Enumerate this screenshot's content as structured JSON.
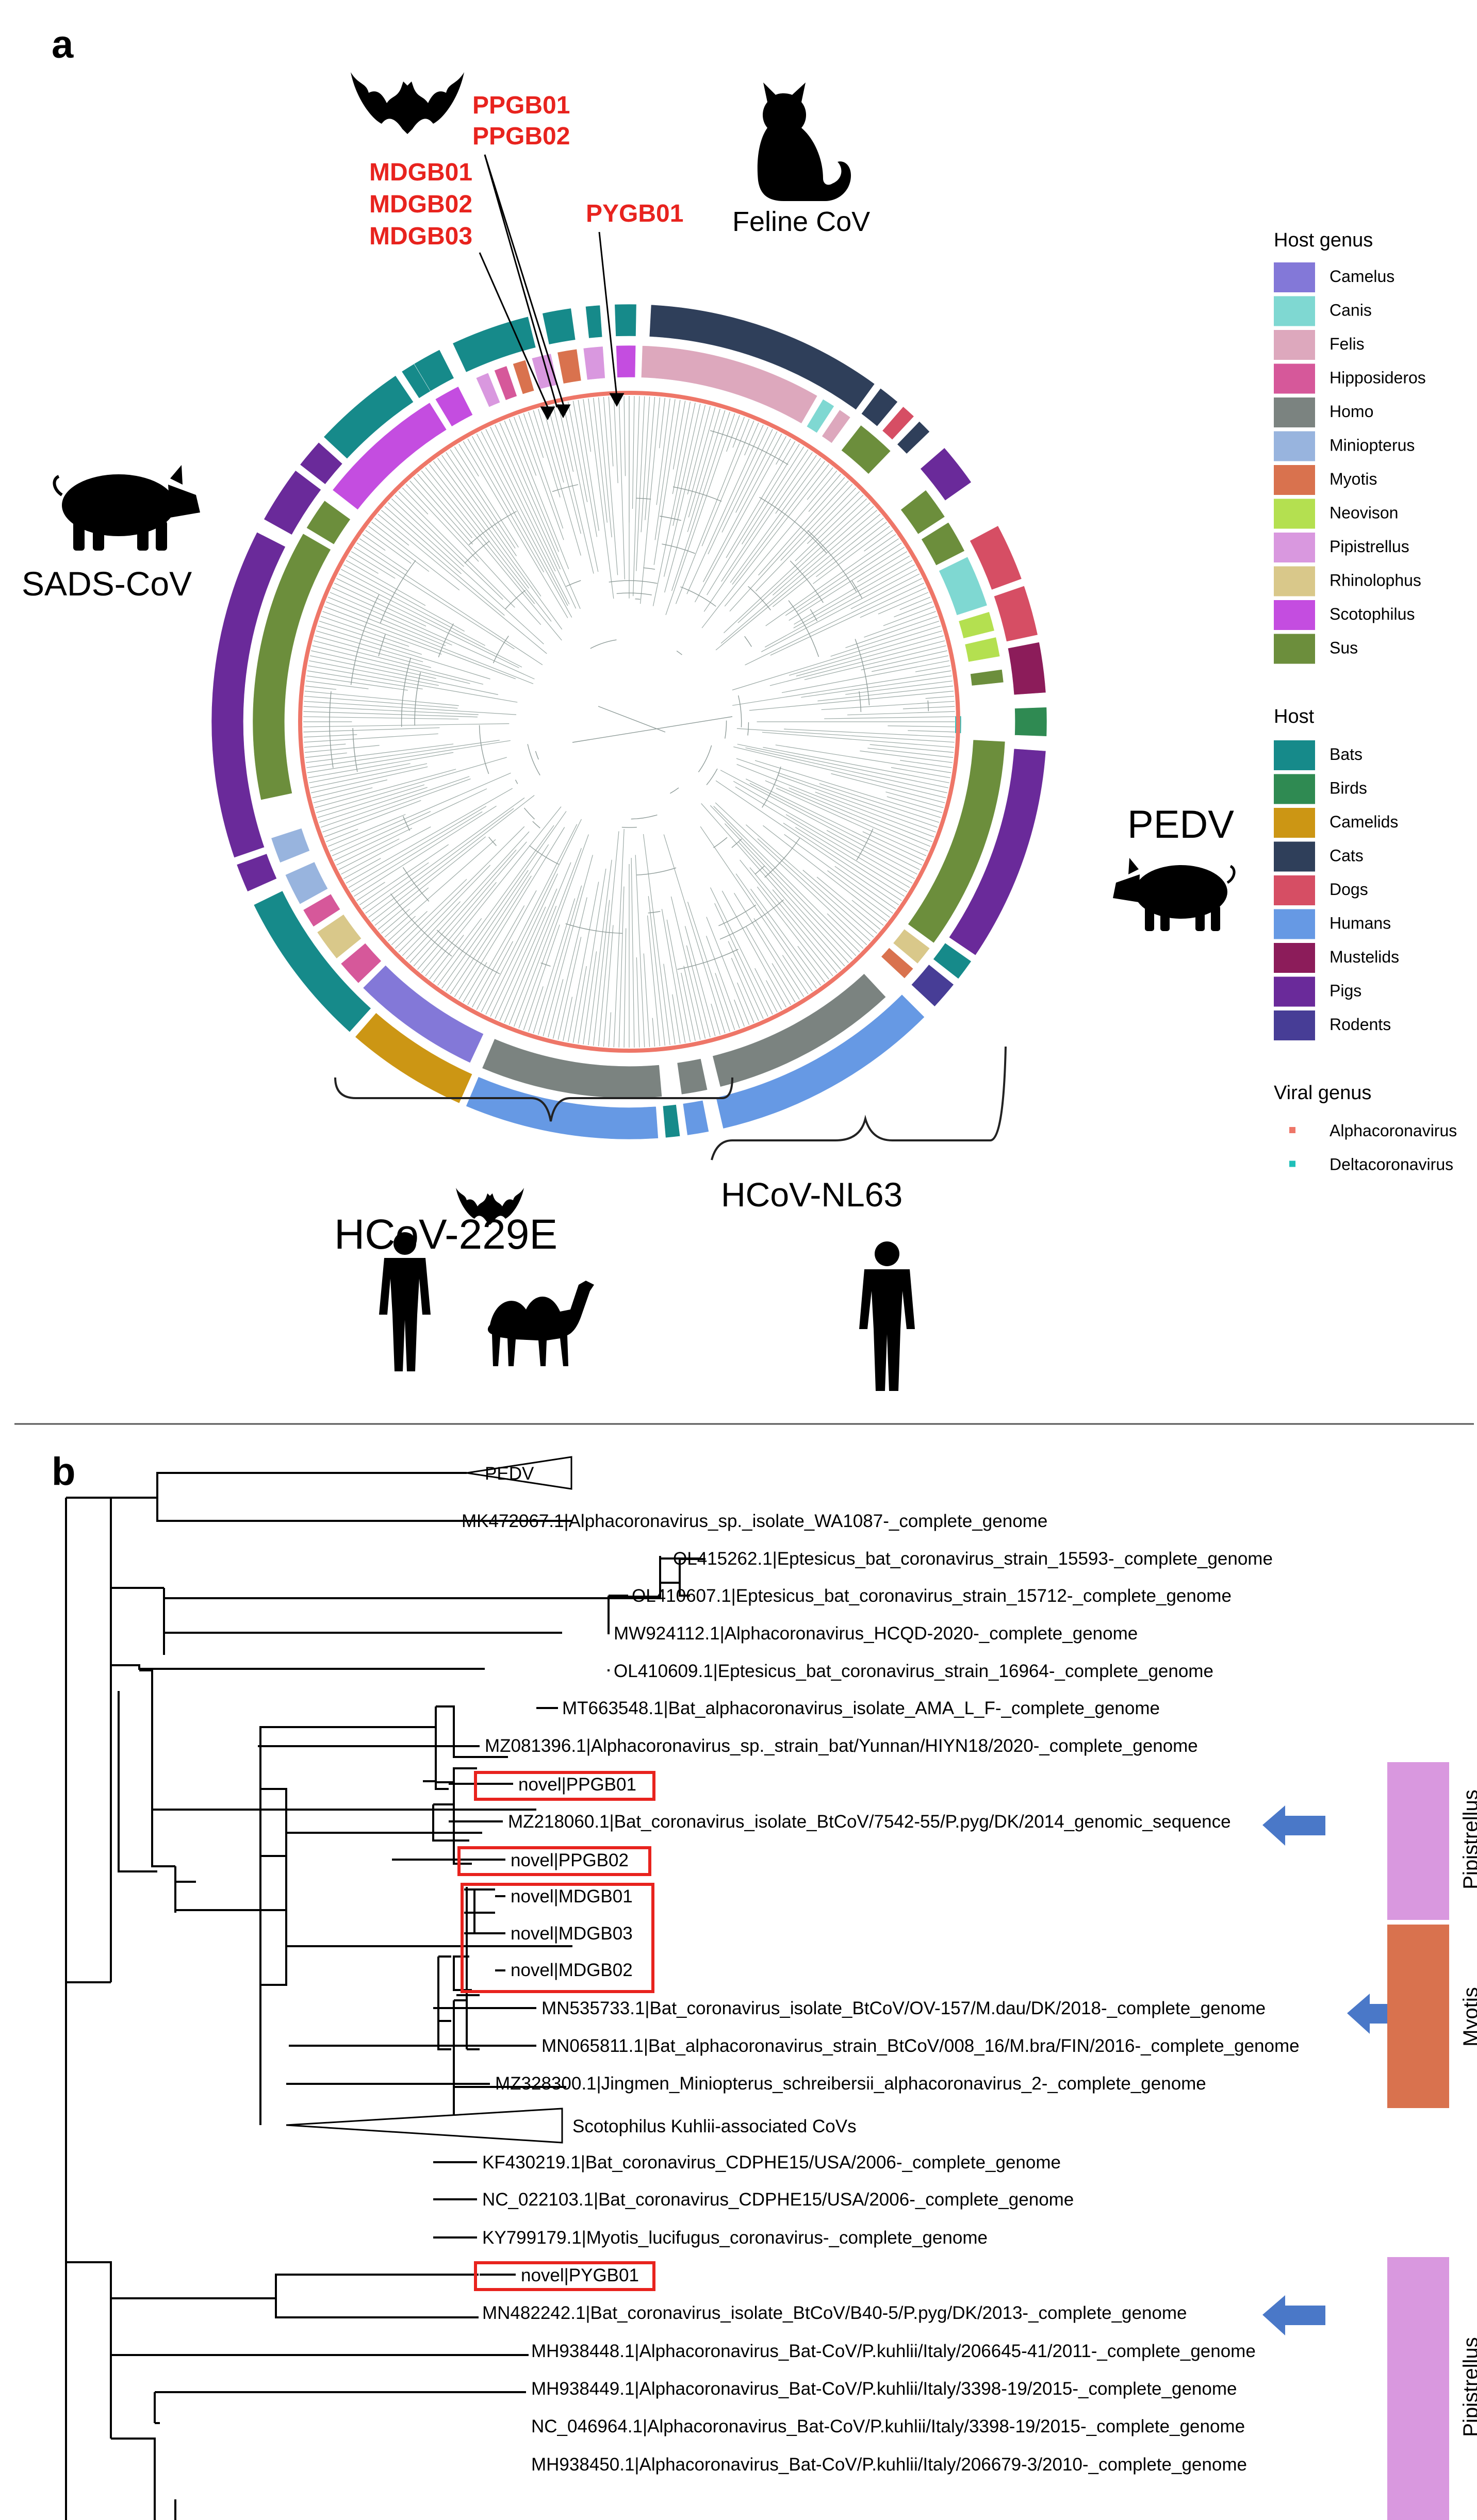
{
  "panel_a": {
    "letter": "a",
    "highlight_labels": [
      {
        "id": "ppgb",
        "lines": [
          "PPGB01",
          "PPGB02"
        ]
      },
      {
        "id": "mdgb",
        "lines": [
          "MDGB01",
          "MDGB02",
          "MDGB03"
        ]
      },
      {
        "id": "pygb",
        "lines": [
          "PYGB01"
        ]
      }
    ],
    "clade_labels": {
      "feline": "Feline CoV",
      "sads": "SADS-CoV",
      "pedv": "PEDV",
      "hcov229e": "HCoV-229E",
      "hcovnl63": "HCoV-NL63"
    },
    "icons": [
      "bat-icon",
      "cat-icon",
      "pig-icon",
      "human-icon",
      "camel-icon"
    ],
    "legend_host_genus": {
      "title": "Host genus",
      "items": [
        {
          "label": "Camelus",
          "color": "#8378d8"
        },
        {
          "label": "Canis",
          "color": "#7fd8d2"
        },
        {
          "label": "Felis",
          "color": "#dda8bd"
        },
        {
          "label": "Hipposideros",
          "color": "#d6589a"
        },
        {
          "label": "Homo",
          "color": "#7b8380"
        },
        {
          "label": "Miniopterus",
          "color": "#98b4de"
        },
        {
          "label": "Myotis",
          "color": "#d9724e"
        },
        {
          "label": "Neovison",
          "color": "#b4e050"
        },
        {
          "label": "Pipistrellus",
          "color": "#d998df"
        },
        {
          "label": "Rhinolophus",
          "color": "#d9c88a"
        },
        {
          "label": "Scotophilus",
          "color": "#c44de0"
        },
        {
          "label": "Sus",
          "color": "#6c8e3c"
        }
      ]
    },
    "legend_host": {
      "title": "Host",
      "items": [
        {
          "label": "Bats",
          "color": "#168a8a"
        },
        {
          "label": "Birds",
          "color": "#2f8a52"
        },
        {
          "label": "Camelids",
          "color": "#cc9614"
        },
        {
          "label": "Cats",
          "color": "#2f3f5a"
        },
        {
          "label": "Dogs",
          "color": "#d64e64"
        },
        {
          "label": "Humans",
          "color": "#6699e4"
        },
        {
          "label": "Mustelids",
          "color": "#8c1c5a"
        },
        {
          "label": "Pigs",
          "color": "#6a2a9a"
        },
        {
          "label": "Rodents",
          "color": "#473d96"
        }
      ]
    },
    "legend_viral": {
      "title": "Viral genus",
      "items": [
        {
          "label": "Alphacoronavirus",
          "color": "#ee7668"
        },
        {
          "label": "Deltacoronavirus",
          "color": "#1fbfb8"
        }
      ]
    }
  },
  "panel_b": {
    "letter": "b",
    "collapsed": [
      "PEDV",
      "Scotophilus Kuhlii-associated CoVs"
    ],
    "taxa": [
      "MK472067.1|Alphacoronavirus_sp._isolate_WA1087-_complete_genome",
      "OL415262.1|Eptesicus_bat_coronavirus_strain_15593-_complete_genome",
      "OL410607.1|Eptesicus_bat_coronavirus_strain_15712-_complete_genome",
      "MW924112.1|Alphacoronavirus_HCQD-2020-_complete_genome",
      "OL410609.1|Eptesicus_bat_coronavirus_strain_16964-_complete_genome",
      "MT663548.1|Bat_alphacoronavirus_isolate_AMA_L_F-_complete_genome",
      "MZ081396.1|Alphacoronavirus_sp._strain_bat/Yunnan/HIYN18/2020-_complete_genome",
      "novel|PPGB01",
      "MZ218060.1|Bat_coronavirus_isolate_BtCoV/7542-55/P.pyg/DK/2014_genomic_sequence",
      "novel|PPGB02",
      "novel|MDGB01",
      "novel|MDGB03",
      "novel|MDGB02",
      "MN535733.1|Bat_coronavirus_isolate_BtCoV/OV-157/M.dau/DK/2018-_complete_genome",
      "MN065811.1|Bat_alphacoronavirus_strain_BtCoV/008_16/M.bra/FIN/2016-_complete_genome",
      "MZ328300.1|Jingmen_Miniopterus_schreibersii_alphacoronavirus_2-_complete_genome",
      "KF430219.1|Bat_coronavirus_CDPHE15/USA/2006-_complete_genome",
      "NC_022103.1|Bat_coronavirus_CDPHE15/USA/2006-_complete_genome",
      "KY799179.1|Myotis_lucifugus_coronavirus-_complete_genome",
      "novel|PYGB01",
      "MN482242.1|Bat_coronavirus_isolate_BtCoV/B40-5/P.pyg/DK/2013-_complete_genome",
      "MH938448.1|Alphacoronavirus_Bat-CoV/P.kuhlii/Italy/206645-41/2011-_complete_genome",
      "MH938449.1|Alphacoronavirus_Bat-CoV/P.kuhlii/Italy/3398-19/2015-_complete_genome",
      "NC_046964.1|Alphacoronavirus_Bat-CoV/P.kuhlii/Italy/3398-19/2015-_complete_genome",
      "MH938450.1|Alphacoronavirus_Bat-CoV/P.kuhlii/Italy/206679-3/2010-_complete_genome"
    ],
    "side_bars": [
      {
        "label": "Pipistrellus",
        "color": "#d998df"
      },
      {
        "label": "Myotis",
        "color": "#d9724e"
      },
      {
        "label": "Pipistrellus",
        "color": "#d998df"
      }
    ]
  }
}
